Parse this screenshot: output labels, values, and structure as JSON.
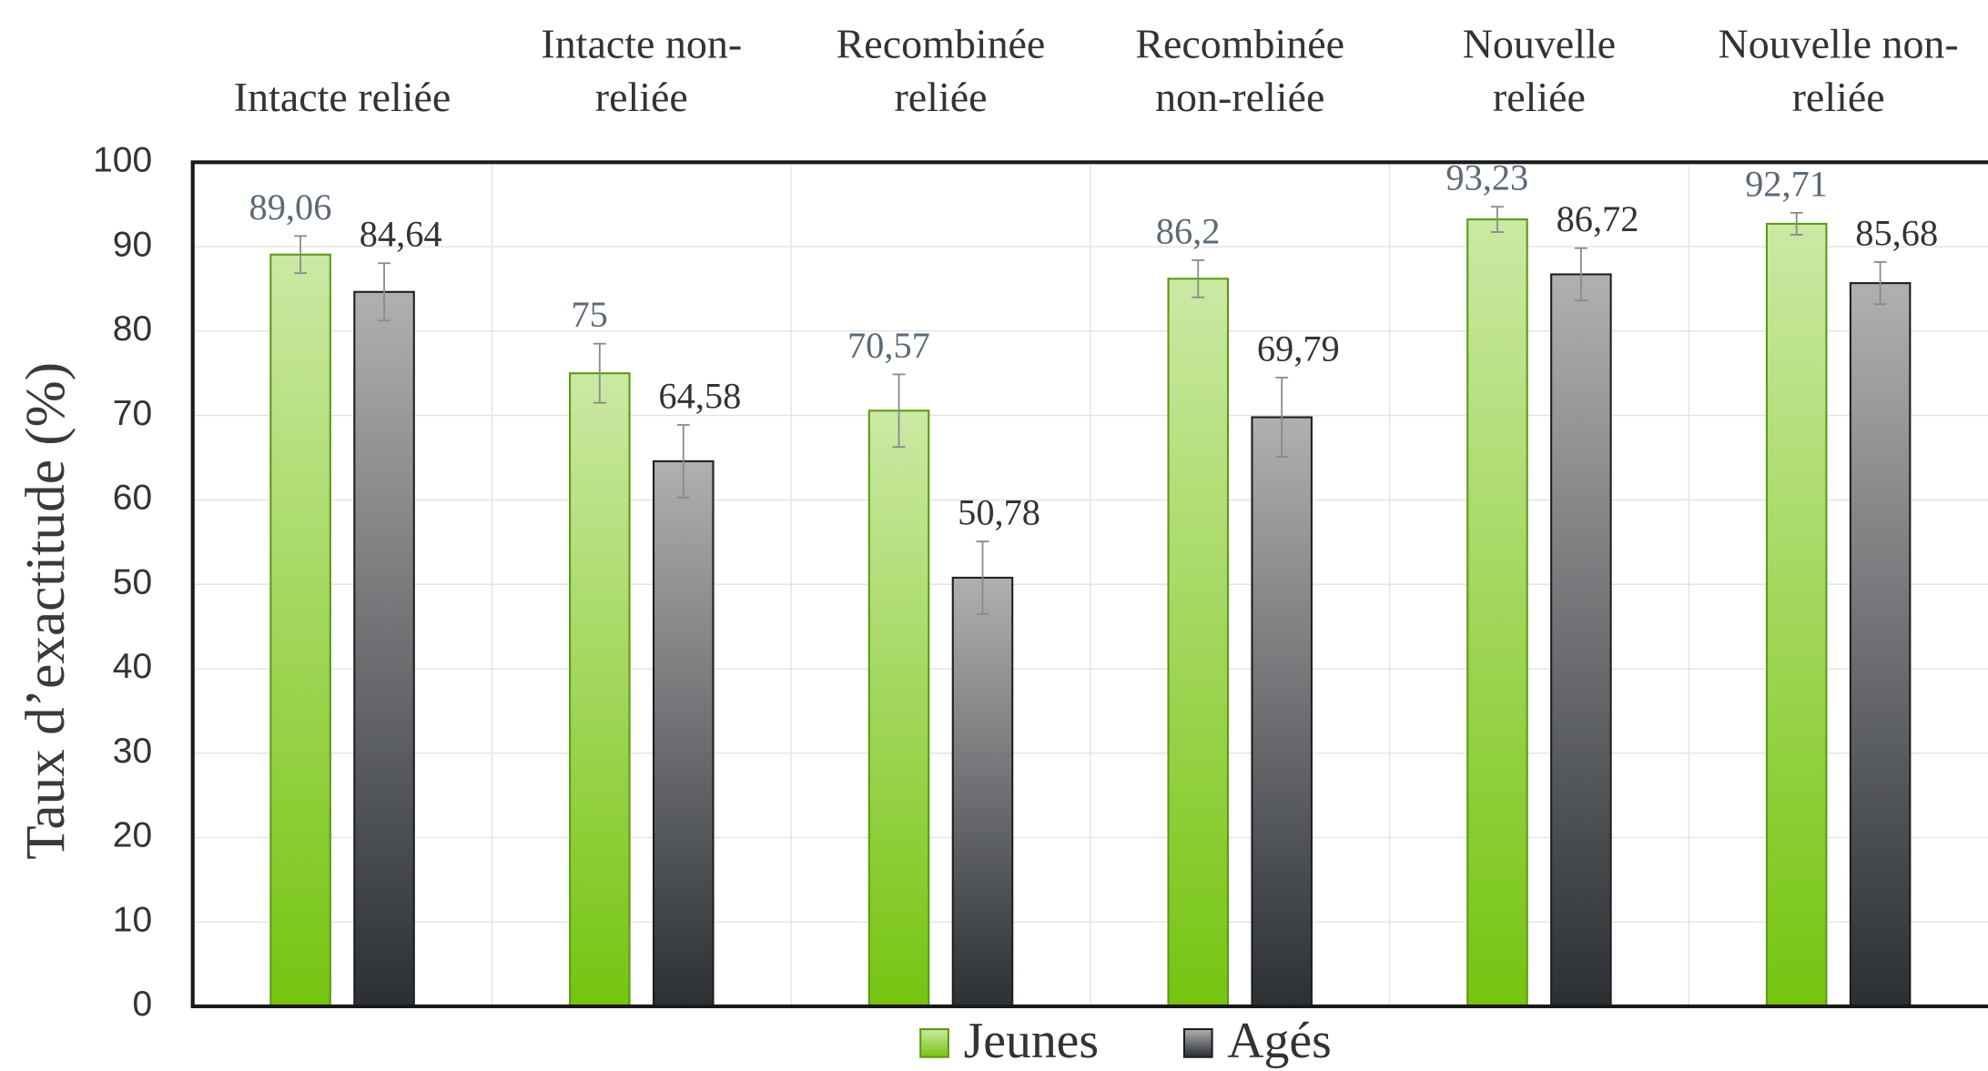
{
  "chart_data": {
    "type": "bar",
    "ylabel": "Taux d’exactitude (%)",
    "categories": [
      [
        "Intacte reliée"
      ],
      [
        "Intacte non-",
        "reliée"
      ],
      [
        "Recombinée",
        "reliée"
      ],
      [
        "Recombinée",
        "non-reliée"
      ],
      [
        "Nouvelle",
        "reliée"
      ],
      [
        "Nouvelle non-",
        "reliée"
      ]
    ],
    "series": [
      {
        "name": "Jeunes",
        "color": "#76c410",
        "values": [
          89.06,
          75,
          70.57,
          86.2,
          93.23,
          92.71
        ],
        "value_labels": [
          "89,06",
          "75",
          "70,57",
          "86,2",
          "93,23",
          "92,71"
        ],
        "errors": [
          2.2,
          3.5,
          4.3,
          2.2,
          1.5,
          1.3
        ]
      },
      {
        "name": "Agés",
        "color": "#2c2f33",
        "values": [
          84.64,
          64.58,
          50.78,
          69.79,
          86.72,
          85.68
        ],
        "value_labels": [
          "84,64",
          "64,58",
          "50,78",
          "69,79",
          "86,72",
          "85,68"
        ],
        "errors": [
          3.4,
          4.3,
          4.3,
          4.7,
          3.1,
          2.5
        ]
      }
    ],
    "ylim": [
      0,
      100
    ],
    "yticks": [
      0,
      10,
      20,
      30,
      40,
      50,
      60,
      70,
      80,
      90,
      100
    ],
    "grid": true,
    "legend": "bottom"
  }
}
